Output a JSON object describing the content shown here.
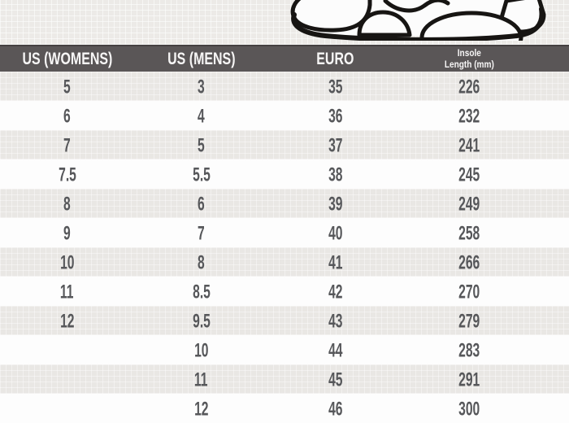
{
  "banner": {
    "icon": "sneaker-sole-illustration"
  },
  "header": {
    "col4_line1": "Insole",
    "col4_line2": "Length (mm)"
  },
  "chart_data": {
    "type": "table",
    "columns": [
      "US (WOMENS)",
      "US (MENS)",
      "EURO",
      "Insole Length (mm)"
    ],
    "rows": [
      [
        "5",
        "3",
        "35",
        "226"
      ],
      [
        "6",
        "4",
        "36",
        "232"
      ],
      [
        "7",
        "5",
        "37",
        "241"
      ],
      [
        "7.5",
        "5.5",
        "38",
        "245"
      ],
      [
        "8",
        "6",
        "39",
        "249"
      ],
      [
        "9",
        "7",
        "40",
        "258"
      ],
      [
        "10",
        "8",
        "41",
        "266"
      ],
      [
        "11",
        "8.5",
        "42",
        "270"
      ],
      [
        "12",
        "9.5",
        "43",
        "279"
      ],
      [
        "",
        "10",
        "44",
        "283"
      ],
      [
        "",
        "11",
        "45",
        "291"
      ],
      [
        "",
        "12",
        "46",
        "300"
      ]
    ],
    "layout": {
      "row_striping": "gray-white alternating, first data row gray",
      "last_row_clipped": true
    }
  },
  "colors": {
    "header_bg": "#5a5657",
    "header_text": "#f7f6f6",
    "row_gray": "#e9e7e4",
    "row_white": "#fdfdfd",
    "banner_bg": "#eceae7",
    "number_text": "#56575a",
    "shoe_outline": "#171513"
  }
}
